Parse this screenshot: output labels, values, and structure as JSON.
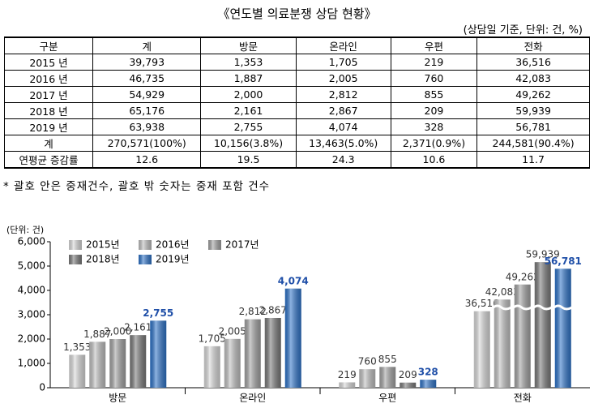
{
  "title": "《연도별 의료분쟁 상담 현황》",
  "note": "(상담일 기준, 단위: 건, %)",
  "table": {
    "header": [
      "구분",
      "계",
      "방문",
      "온라인",
      "우편",
      "전화"
    ],
    "rows": [
      [
        "2015 년",
        "39,793",
        "1,353",
        "1,705",
        "219",
        "36,516"
      ],
      [
        "2016 년",
        "46,735",
        "1,887",
        "2,005",
        "760",
        "42,083"
      ],
      [
        "2017 년",
        "54,929",
        "2,000",
        "2,812",
        "855",
        "49,262"
      ],
      [
        "2018 년",
        "65,176",
        "2,161",
        "2,867",
        "209",
        "59,939"
      ],
      [
        "2019 년",
        "63,938",
        "2,755",
        "4,074",
        "328",
        "56,781"
      ],
      [
        "계",
        "270,571(100%)",
        "10,156(3.8%)",
        "13,463(5.0%)",
        "2,371(0.9%)",
        "244,581(90.4%)"
      ],
      [
        "연평균 증감률",
        "12.6",
        "19.5",
        "24.3",
        "10.6",
        "11.7"
      ]
    ]
  },
  "footnote": "* 괄호 안은 중재건수, 괄호 밖 숫자는 중재 포함 건수",
  "chart_data": {
    "type": "bar",
    "unit_label": "(단위: 건)",
    "categories": [
      "방문",
      "온라인",
      "우편",
      "전화"
    ],
    "series": [
      {
        "name": "2015년",
        "color": "#d9d9d9",
        "values": [
          1353,
          1705,
          219,
          36516
        ],
        "value_labels": [
          "1,353",
          "1,705",
          "219",
          "36,516"
        ]
      },
      {
        "name": "2016년",
        "color": "#c0c0c0",
        "values": [
          1887,
          2005,
          760,
          42083
        ],
        "value_labels": [
          "1,887",
          "2,005",
          "760",
          "42,083"
        ]
      },
      {
        "name": "2017년",
        "color": "#a3a3a3",
        "values": [
          2000,
          2812,
          855,
          49262
        ],
        "value_labels": [
          "2,000",
          "2,812",
          "855",
          "49,262"
        ]
      },
      {
        "name": "2018년",
        "color": "#7a7a7a",
        "values": [
          2161,
          2867,
          209,
          59939
        ],
        "value_labels": [
          "2,161",
          "2,867",
          "209",
          "59,939"
        ]
      },
      {
        "name": "2019년",
        "color": "#2f74c9",
        "values": [
          2755,
          4074,
          328,
          56781
        ],
        "value_labels": [
          "2,755",
          "4,074",
          "328",
          "56,781"
        ]
      }
    ],
    "ylim": [
      0,
      6000
    ],
    "yticks": [
      {
        "value": 0,
        "label": "0"
      },
      {
        "value": 1000,
        "label": "1,000"
      },
      {
        "value": 2000,
        "label": "2,000"
      },
      {
        "value": 3000,
        "label": "3,000"
      },
      {
        "value": 4000,
        "label": "4,000"
      },
      {
        "value": 5000,
        "label": "5,000"
      },
      {
        "value": 6000,
        "label": "6,000"
      }
    ],
    "grid": false
  }
}
